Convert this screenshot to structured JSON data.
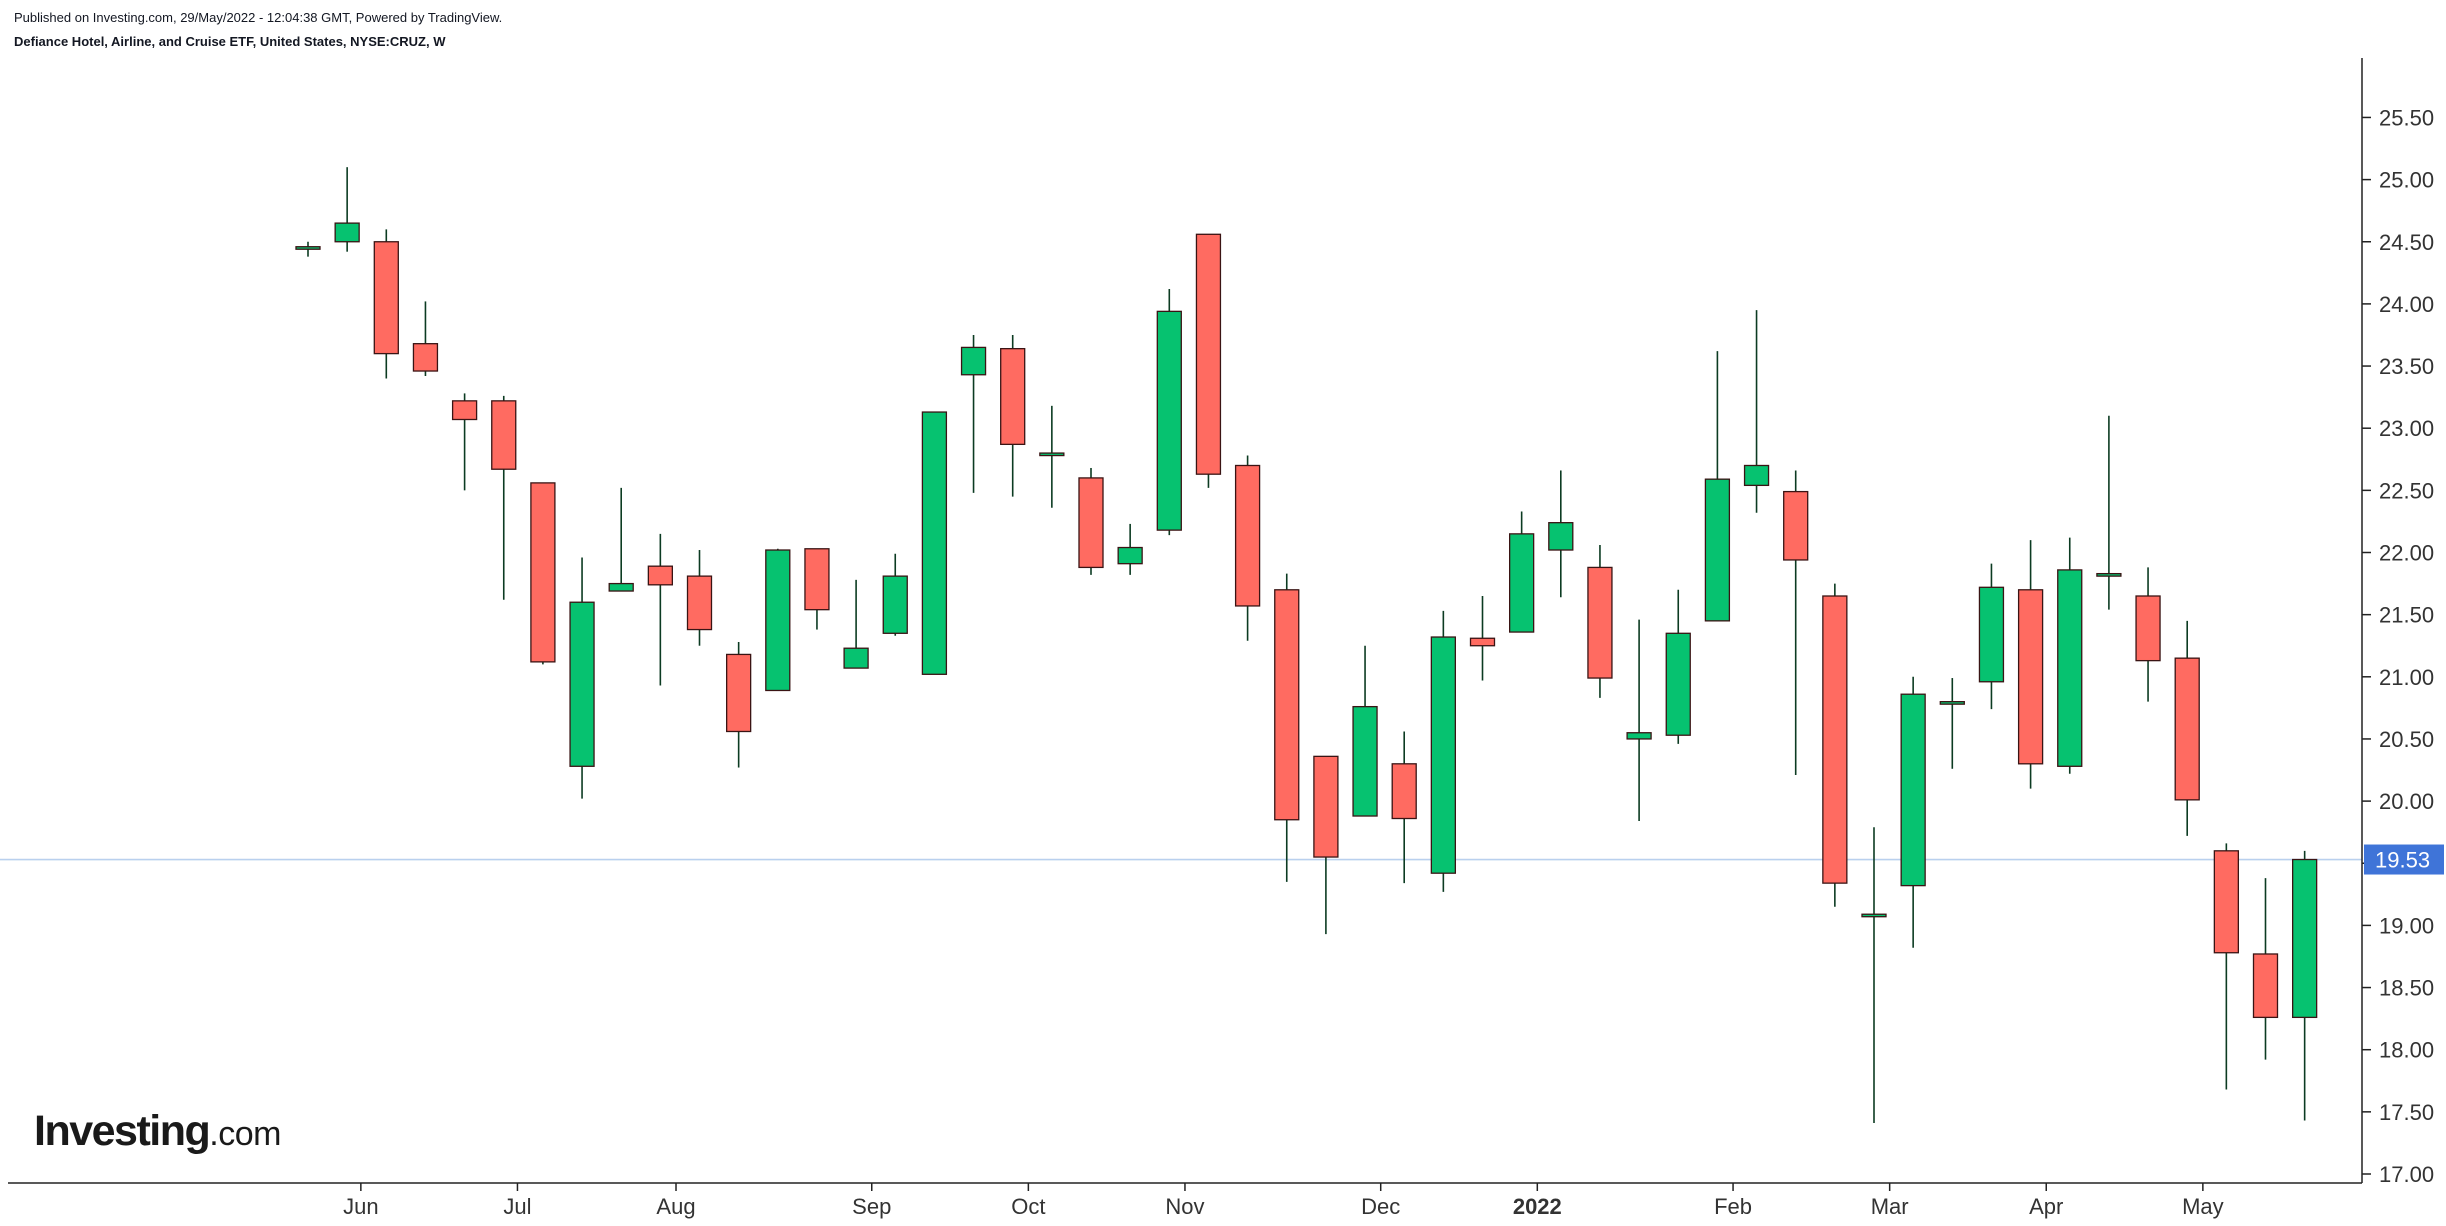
{
  "header": {
    "published": "Published on Investing.com, 29/May/2022 - 12:04:38 GMT, Powered by TradingView.",
    "instrument": "Defiance Hotel, Airline, and Cruise ETF, United States, NYSE:CRUZ, W"
  },
  "logo": {
    "main": "Investing",
    "suffix": ".com"
  },
  "colors": {
    "up": "#06c270",
    "down": "#ff6b61",
    "wick": "#0c3b22",
    "current_line": "#b9d0ee",
    "current_badge": "#3f74d8"
  },
  "chart_data": {
    "type": "candlestick",
    "timeframe": "W",
    "ylim": [
      17.0,
      25.9
    ],
    "y_ticks": [
      17.0,
      17.5,
      18.0,
      18.5,
      19.0,
      19.5,
      20.0,
      20.5,
      21.0,
      21.5,
      22.0,
      22.5,
      23.0,
      23.5,
      24.0,
      24.5,
      25.0,
      25.5
    ],
    "y_tick_labels": [
      "17.00",
      "17.50",
      "18.00",
      "18.50",
      "19.00",
      "",
      "20.00",
      "20.50",
      "21.00",
      "21.50",
      "22.00",
      "22.50",
      "23.00",
      "23.50",
      "24.00",
      "24.50",
      "25.00",
      "25.50"
    ],
    "x_labels": [
      {
        "label": "Jun",
        "week": 1.35,
        "bold": false
      },
      {
        "label": "Jul",
        "week": 5.35,
        "bold": false
      },
      {
        "label": "Aug",
        "week": 9.4,
        "bold": false
      },
      {
        "label": "Sep",
        "week": 14.4,
        "bold": false
      },
      {
        "label": "Oct",
        "week": 18.4,
        "bold": false
      },
      {
        "label": "Nov",
        "week": 22.4,
        "bold": false
      },
      {
        "label": "Dec",
        "week": 27.4,
        "bold": false
      },
      {
        "label": "2022",
        "week": 31.4,
        "bold": true
      },
      {
        "label": "Feb",
        "week": 36.4,
        "bold": false
      },
      {
        "label": "Mar",
        "week": 40.4,
        "bold": false
      },
      {
        "label": "Apr",
        "week": 44.4,
        "bold": false
      },
      {
        "label": "May",
        "week": 48.4,
        "bold": false
      }
    ],
    "current_price": 19.53,
    "current_price_label": "19.53",
    "candles": [
      {
        "o": 24.45,
        "h": 24.5,
        "l": 24.38,
        "c": 24.46
      },
      {
        "o": 24.5,
        "h": 25.1,
        "l": 24.42,
        "c": 24.65
      },
      {
        "o": 24.5,
        "h": 24.6,
        "l": 23.4,
        "c": 23.6
      },
      {
        "o": 23.68,
        "h": 24.02,
        "l": 23.42,
        "c": 23.46
      },
      {
        "o": 23.22,
        "h": 23.28,
        "l": 22.5,
        "c": 23.07
      },
      {
        "o": 23.22,
        "h": 23.26,
        "l": 21.62,
        "c": 22.67
      },
      {
        "o": 22.56,
        "h": 22.56,
        "l": 21.1,
        "c": 21.12
      },
      {
        "o": 20.28,
        "h": 21.96,
        "l": 20.02,
        "c": 21.6
      },
      {
        "o": 21.69,
        "h": 22.52,
        "l": 21.69,
        "c": 21.75
      },
      {
        "o": 21.89,
        "h": 22.15,
        "l": 20.93,
        "c": 21.74
      },
      {
        "o": 21.81,
        "h": 22.02,
        "l": 21.25,
        "c": 21.38
      },
      {
        "o": 21.18,
        "h": 21.28,
        "l": 20.27,
        "c": 20.56
      },
      {
        "o": 20.89,
        "h": 22.03,
        "l": 20.89,
        "c": 22.02
      },
      {
        "o": 22.03,
        "h": 22.03,
        "l": 21.38,
        "c": 21.54
      },
      {
        "o": 21.07,
        "h": 21.78,
        "l": 21.07,
        "c": 21.23
      },
      {
        "o": 21.35,
        "h": 21.99,
        "l": 21.33,
        "c": 21.81
      },
      {
        "o": 21.02,
        "h": 23.13,
        "l": 21.02,
        "c": 23.13
      },
      {
        "o": 23.43,
        "h": 23.75,
        "l": 22.48,
        "c": 23.65
      },
      {
        "o": 23.64,
        "h": 23.75,
        "l": 22.45,
        "c": 22.87
      },
      {
        "o": 22.8,
        "h": 23.18,
        "l": 22.36,
        "c": 22.8
      },
      {
        "o": 22.6,
        "h": 22.68,
        "l": 21.82,
        "c": 21.88
      },
      {
        "o": 21.91,
        "h": 22.23,
        "l": 21.82,
        "c": 22.04
      },
      {
        "o": 22.18,
        "h": 24.12,
        "l": 22.14,
        "c": 23.94
      },
      {
        "o": 24.56,
        "h": 24.56,
        "l": 22.52,
        "c": 22.63
      },
      {
        "o": 22.7,
        "h": 22.78,
        "l": 21.29,
        "c": 21.57
      },
      {
        "o": 21.7,
        "h": 21.83,
        "l": 19.35,
        "c": 19.85
      },
      {
        "o": 20.36,
        "h": 20.36,
        "l": 18.93,
        "c": 19.55
      },
      {
        "o": 19.88,
        "h": 21.25,
        "l": 19.88,
        "c": 20.76
      },
      {
        "o": 20.3,
        "h": 20.56,
        "l": 19.34,
        "c": 19.86
      },
      {
        "o": 19.42,
        "h": 21.53,
        "l": 19.27,
        "c": 21.32
      },
      {
        "o": 21.31,
        "h": 21.65,
        "l": 20.97,
        "c": 21.25
      },
      {
        "o": 21.36,
        "h": 22.33,
        "l": 21.36,
        "c": 22.15
      },
      {
        "o": 22.02,
        "h": 22.66,
        "l": 21.64,
        "c": 22.24
      },
      {
        "o": 21.88,
        "h": 22.06,
        "l": 20.83,
        "c": 20.99
      },
      {
        "o": 20.5,
        "h": 21.46,
        "l": 19.84,
        "c": 20.55
      },
      {
        "o": 20.53,
        "h": 21.7,
        "l": 20.46,
        "c": 21.35
      },
      {
        "o": 21.45,
        "h": 23.62,
        "l": 21.45,
        "c": 22.59
      },
      {
        "o": 22.54,
        "h": 23.95,
        "l": 22.32,
        "c": 22.7
      },
      {
        "o": 22.49,
        "h": 22.66,
        "l": 20.21,
        "c": 21.94
      },
      {
        "o": 21.65,
        "h": 21.75,
        "l": 19.15,
        "c": 19.34
      },
      {
        "o": 19.09,
        "h": 19.79,
        "l": 17.41,
        "c": 19.09
      },
      {
        "o": 19.32,
        "h": 21.0,
        "l": 18.82,
        "c": 20.86
      },
      {
        "o": 20.8,
        "h": 20.99,
        "l": 20.26,
        "c": 20.8
      },
      {
        "o": 20.96,
        "h": 21.91,
        "l": 20.74,
        "c": 21.72
      },
      {
        "o": 21.7,
        "h": 22.1,
        "l": 20.1,
        "c": 20.3
      },
      {
        "o": 20.28,
        "h": 22.12,
        "l": 20.22,
        "c": 21.86
      },
      {
        "o": 21.83,
        "h": 23.1,
        "l": 21.54,
        "c": 21.83
      },
      {
        "o": 21.65,
        "h": 21.88,
        "l": 20.8,
        "c": 21.13
      },
      {
        "o": 21.15,
        "h": 21.45,
        "l": 19.72,
        "c": 20.01
      },
      {
        "o": 19.6,
        "h": 19.66,
        "l": 17.68,
        "c": 18.78
      },
      {
        "o": 18.77,
        "h": 19.38,
        "l": 17.92,
        "c": 18.26
      },
      {
        "o": 18.26,
        "h": 19.6,
        "l": 17.43,
        "c": 19.53
      }
    ]
  }
}
